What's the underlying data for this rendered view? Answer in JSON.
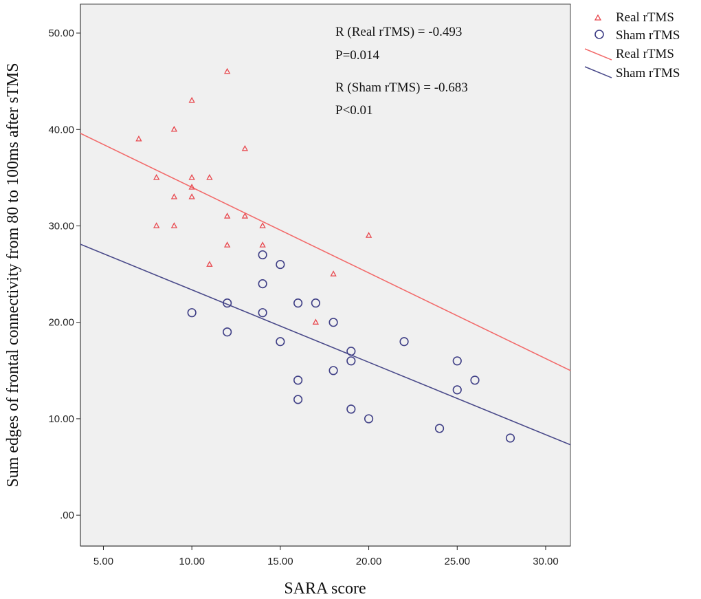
{
  "chart_data": {
    "type": "scatter",
    "xlabel": "SARA score",
    "ylabel": "Sum edges of frontal connectivity from 80 to 100ms after sTMS",
    "xlim": [
      3.7,
      31.4
    ],
    "ylim": [
      -3.2,
      53
    ],
    "xticks": [
      5,
      10,
      15,
      20,
      25,
      30
    ],
    "xtick_labels": [
      "5.00",
      "10.00",
      "15.00",
      "20.00",
      "25.00",
      "30.00"
    ],
    "yticks": [
      0,
      10,
      20,
      30,
      40,
      50
    ],
    "ytick_labels": [
      ".00",
      "10.00",
      "20.00",
      "30.00",
      "40.00",
      "50.00"
    ],
    "grid": false,
    "background": "#f0f0f0",
    "legend": {
      "position": "right",
      "entries": [
        {
          "label": "Real rTMS",
          "kind": "marker",
          "marker": "triangle",
          "color": "#e8494f"
        },
        {
          "label": "Sham rTMS",
          "kind": "marker",
          "marker": "circle",
          "color": "#3f3f86"
        },
        {
          "label": "Real rTMS",
          "kind": "line",
          "color": "#f26a6a"
        },
        {
          "label": "Sham rTMS",
          "kind": "line",
          "color": "#4a4a8a"
        }
      ]
    },
    "annotations": [
      "R (Real rTMS) = -0.493",
      "P=0.014",
      "R (Sham rTMS) = -0.683",
      "P<0.01"
    ],
    "series": [
      {
        "name": "Real rTMS",
        "marker": "triangle",
        "color": "#e8494f",
        "points": [
          [
            7,
            39
          ],
          [
            8,
            35
          ],
          [
            8,
            30
          ],
          [
            9,
            40
          ],
          [
            9,
            33
          ],
          [
            9,
            30
          ],
          [
            10,
            43
          ],
          [
            10,
            35
          ],
          [
            10,
            34
          ],
          [
            10,
            33
          ],
          [
            11,
            35
          ],
          [
            11,
            26
          ],
          [
            12,
            46
          ],
          [
            12,
            31
          ],
          [
            12,
            28
          ],
          [
            13,
            38
          ],
          [
            13,
            31
          ],
          [
            14,
            30
          ],
          [
            14,
            28
          ],
          [
            17,
            20
          ],
          [
            18,
            25
          ],
          [
            20,
            29
          ]
        ]
      },
      {
        "name": "Sham rTMS",
        "marker": "circle",
        "color": "#3f3f86",
        "points": [
          [
            10,
            21
          ],
          [
            12,
            22
          ],
          [
            12,
            19
          ],
          [
            14,
            27
          ],
          [
            14,
            24
          ],
          [
            14,
            21
          ],
          [
            15,
            26
          ],
          [
            15,
            18
          ],
          [
            16,
            22
          ],
          [
            16,
            14
          ],
          [
            16,
            12
          ],
          [
            17,
            22
          ],
          [
            18,
            20
          ],
          [
            18,
            15
          ],
          [
            19,
            17
          ],
          [
            19,
            16
          ],
          [
            19,
            11
          ],
          [
            20,
            10
          ],
          [
            22,
            18
          ],
          [
            24,
            9
          ],
          [
            25,
            16
          ],
          [
            25,
            13
          ],
          [
            26,
            14
          ],
          [
            28,
            8
          ]
        ]
      }
    ],
    "fit_lines": [
      {
        "name": "Real rTMS",
        "color": "#f26a6a",
        "x": [
          3.7,
          31.4
        ],
        "y": [
          39.6,
          15
        ]
      },
      {
        "name": "Sham rTMS",
        "color": "#4a4a8a",
        "x": [
          3.7,
          31.4
        ],
        "y": [
          28.1,
          7.3
        ]
      }
    ]
  }
}
